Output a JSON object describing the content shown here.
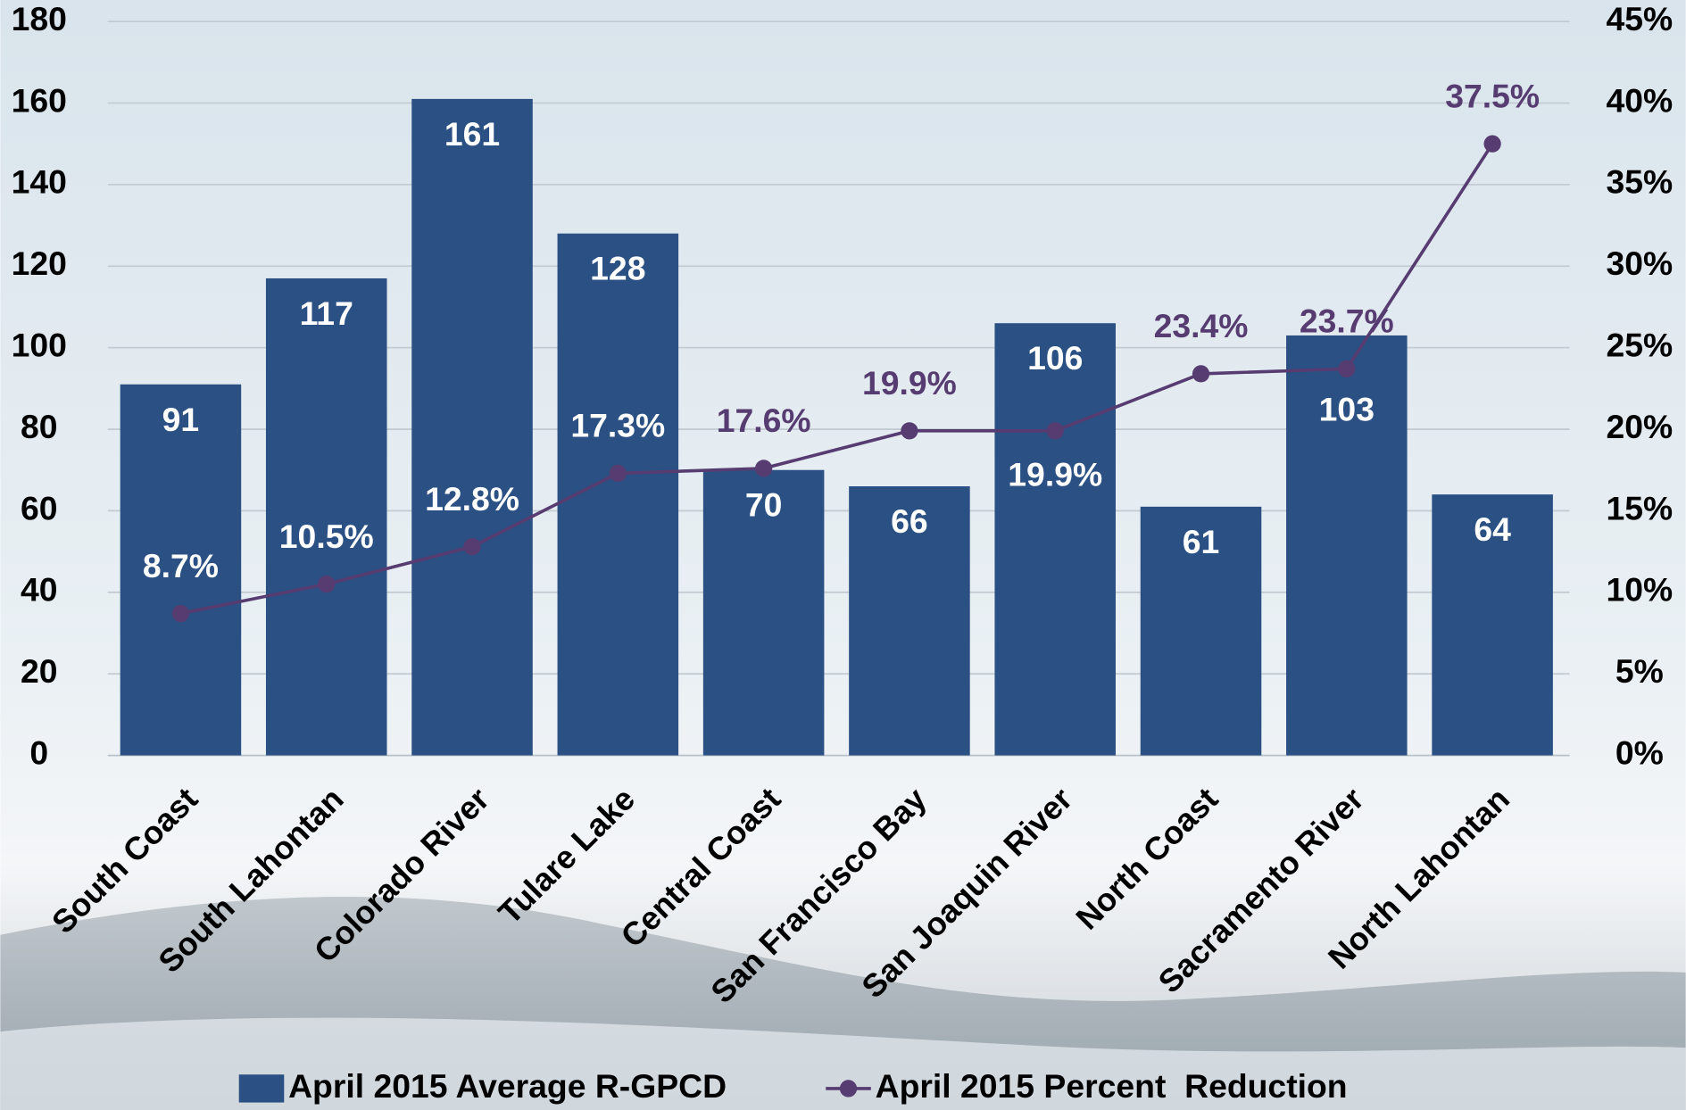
{
  "chart_data": {
    "type": "bar",
    "categories": [
      "South Coast",
      "South Lahontan",
      "Colorado River",
      "Tulare Lake",
      "Central Coast",
      "San Francisco Bay",
      "San Joaquin River",
      "North Coast",
      "Sacramento River",
      "North Lahontan"
    ],
    "series": [
      {
        "name": "April 2015 Average R-GPCD",
        "type": "bar",
        "color": "#2b5083",
        "values": [
          91,
          117,
          161,
          128,
          70,
          66,
          106,
          61,
          103,
          64
        ]
      },
      {
        "name": "April 2015 Percent  Reduction",
        "type": "line",
        "axis": "y2",
        "color": "#563c70",
        "values": [
          8.7,
          10.5,
          12.8,
          17.3,
          17.6,
          19.9,
          19.9,
          23.4,
          23.7,
          37.5
        ],
        "value_labels": [
          "8.7%",
          "10.5%",
          "12.8%",
          "17.3%",
          "17.6%",
          "19.9%",
          "19.9%",
          "23.4%",
          "23.7%",
          "37.5%"
        ]
      }
    ],
    "ylim": [
      0,
      180
    ],
    "yticks": [
      0,
      20,
      40,
      60,
      80,
      100,
      120,
      140,
      160,
      180
    ],
    "y2lim": [
      0,
      45
    ],
    "y2ticks": [
      {
        "value": 0,
        "label": "0%"
      },
      {
        "value": 5,
        "label": "5%"
      },
      {
        "value": 10,
        "label": "10%"
      },
      {
        "value": 15,
        "label": "15%"
      },
      {
        "value": 20,
        "label": "20%"
      },
      {
        "value": 25,
        "label": "25%"
      },
      {
        "value": 30,
        "label": "30%"
      },
      {
        "value": 35,
        "label": "35%"
      },
      {
        "value": 40,
        "label": "40%"
      },
      {
        "value": 45,
        "label": "45%"
      }
    ],
    "grid": true,
    "legend": "bottom"
  }
}
